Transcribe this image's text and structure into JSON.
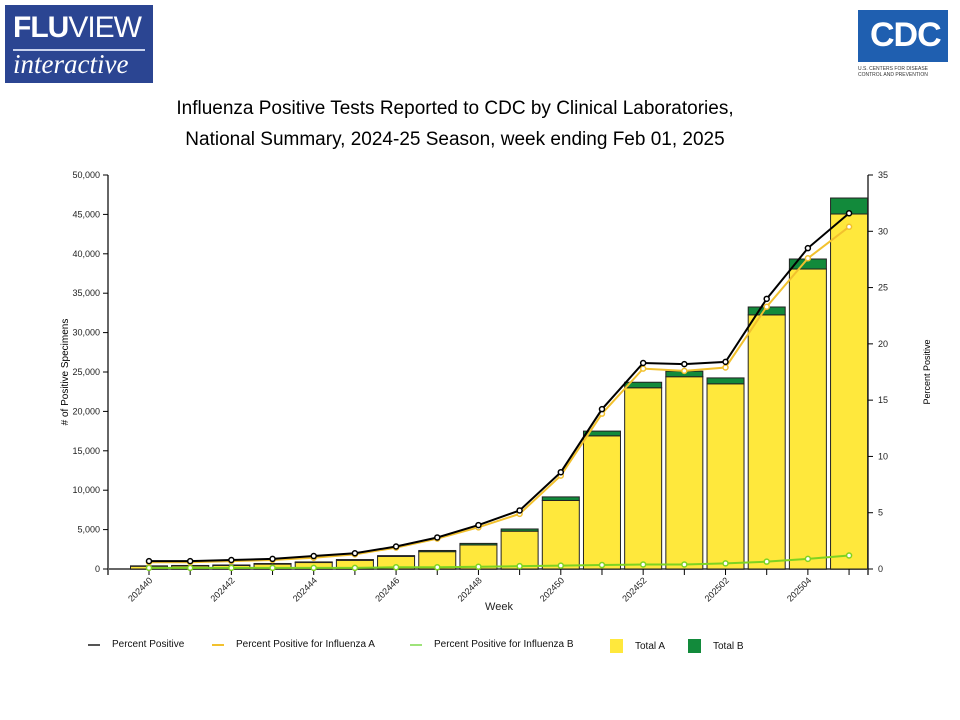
{
  "logos": {
    "fluview": {
      "word_bold": "FLU",
      "word_rest": "VIEW",
      "sub": "interactive"
    },
    "cdc": {
      "mark": "CDC",
      "caption": "U.S. CENTERS FOR DISEASE\nCONTROL AND PREVENTION"
    }
  },
  "colors": {
    "total_a": "#ffe83c",
    "total_b": "#128a3b",
    "pct_all": "#000000",
    "pct_a": "#f2c12e",
    "pct_b": "#7ed321"
  },
  "chart_data": {
    "type": "bar",
    "title_line1": "Influenza Positive Tests Reported to CDC by Clinical Laboratories,",
    "title_line2": "National Summary, 2024-25 Season, week ending Feb 01, 2025",
    "xlabel": "Week",
    "ylabel": "# of Positive Specimens",
    "y2label": "Percent Positive",
    "ylim": [
      0,
      50000
    ],
    "y2lim": [
      0,
      35
    ],
    "yticks": [
      "0",
      "5,000",
      "10,000",
      "15,000",
      "20,000",
      "25,000",
      "30,000",
      "35,000",
      "40,000",
      "45,000",
      "50,000"
    ],
    "y2ticks": [
      "0",
      "5",
      "10",
      "15",
      "20",
      "25",
      "30",
      "35"
    ],
    "categories": [
      "202440",
      "202441",
      "202442",
      "202443",
      "202444",
      "202445",
      "202446",
      "202447",
      "202448",
      "202449",
      "202450",
      "202451",
      "202452",
      "202501",
      "202502",
      "202503",
      "202504",
      "202505"
    ],
    "xtick_labels_shown": [
      "202440",
      "202442",
      "202444",
      "202446",
      "202448",
      "202450",
      "202452",
      "202502",
      "202504"
    ],
    "stacked_series": [
      {
        "name": "Total A",
        "values": [
          350,
          400,
          450,
          620,
          820,
          1100,
          1600,
          2200,
          3050,
          4800,
          8700,
          16900,
          23000,
          24400,
          23500,
          32250,
          38070,
          45050
        ]
      },
      {
        "name": "Total B",
        "values": [
          50,
          50,
          60,
          80,
          80,
          100,
          100,
          150,
          200,
          280,
          450,
          600,
          700,
          700,
          750,
          1000,
          1270,
          2030
        ]
      }
    ],
    "line_series": [
      {
        "name": "Percent Positive",
        "axis": "right",
        "values": [
          0.7,
          0.7,
          0.8,
          0.9,
          1.15,
          1.4,
          2.0,
          2.8,
          3.9,
          5.2,
          8.6,
          14.2,
          18.3,
          18.2,
          18.4,
          24.0,
          28.5,
          31.6
        ]
      },
      {
        "name": "Percent Positive for Influenza A",
        "axis": "right",
        "values": [
          0.6,
          0.6,
          0.7,
          0.8,
          1.0,
          1.3,
          1.9,
          2.7,
          3.7,
          4.9,
          8.3,
          13.8,
          17.8,
          17.6,
          17.9,
          23.3,
          27.6,
          30.4
        ]
      },
      {
        "name": "Percent Positive for Influenza B",
        "axis": "right",
        "values": [
          0.1,
          0.1,
          0.1,
          0.1,
          0.1,
          0.1,
          0.15,
          0.15,
          0.2,
          0.25,
          0.3,
          0.35,
          0.4,
          0.4,
          0.5,
          0.65,
          0.9,
          1.2
        ]
      }
    ],
    "legend": {
      "placement": "bottom",
      "items": [
        "Percent Positive",
        "Percent Positive for Influenza A",
        "Percent Positive for Influenza B",
        "Total A",
        "Total B"
      ]
    },
    "grid": false
  }
}
